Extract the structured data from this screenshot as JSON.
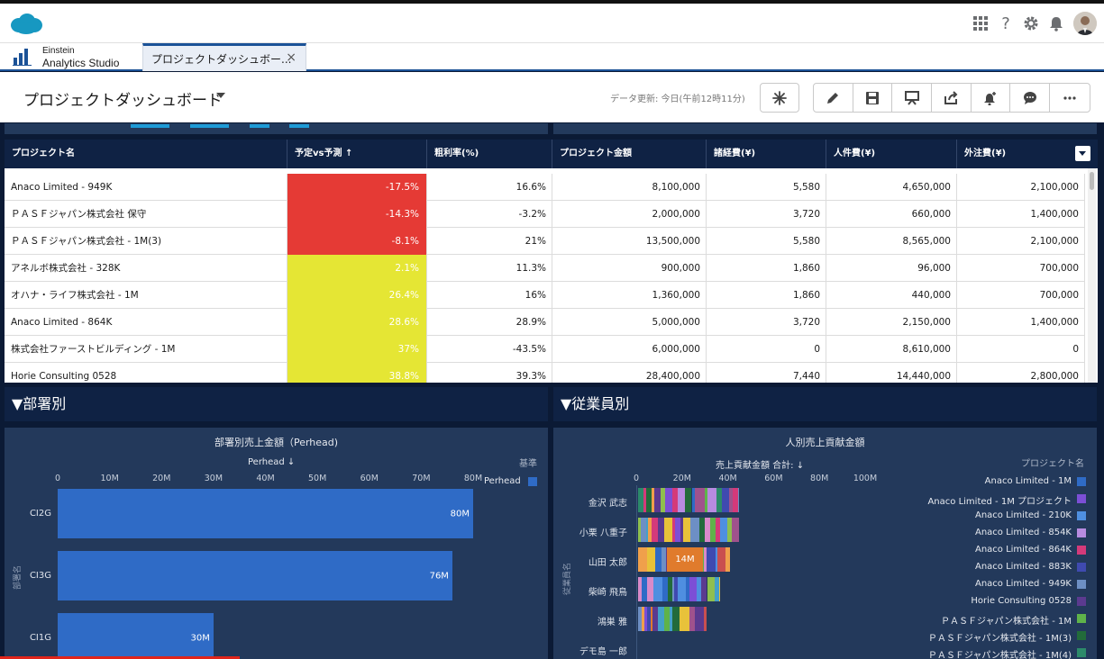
{
  "tab": {
    "app_name_line1": "Einstein",
    "app_name_line2": "Analytics Studio",
    "label": "プロジェクトダッシュボー...",
    "close": "×"
  },
  "header": {
    "title": "プロジェクトダッシュボード",
    "data_update": "データ更新: 今日(午前12時11分)"
  },
  "colors": {
    "red": "#e53a35",
    "yellow": "#e5e634",
    "navy": "#0f2244",
    "panel": "#23395b",
    "bar": "#2f6bc6"
  },
  "icons": [
    "grid-icon",
    "help-icon",
    "gear-icon",
    "bell-icon",
    "asterisk-icon",
    "pencil-icon",
    "save-icon",
    "present-icon",
    "share-icon",
    "notify-icon",
    "comment-icon",
    "more-icon"
  ],
  "table": {
    "columns": [
      "プロジェクト名",
      "予定vs予測 ↑",
      "粗利率(%)",
      "プロジェクト金額",
      "諸経費(¥)",
      "人件費(¥)",
      "外注費(¥)"
    ],
    "rows": [
      {
        "name": "Anaco Limited - 949K",
        "variance": "-17.5%",
        "status": "red",
        "margin": "16.6%",
        "amount": "8,100,000",
        "expense": "5,580",
        "labor": "4,650,000",
        "outsourcing": "2,100,000"
      },
      {
        "name": "ＰＡＳＦジャパン株式会社 保守",
        "variance": "-14.3%",
        "status": "red",
        "margin": "-3.2%",
        "amount": "2,000,000",
        "expense": "3,720",
        "labor": "660,000",
        "outsourcing": "1,400,000"
      },
      {
        "name": "ＰＡＳＦジャパン株式会社 - 1M(3)",
        "variance": "-8.1%",
        "status": "red",
        "margin": "21%",
        "amount": "13,500,000",
        "expense": "5,580",
        "labor": "8,565,000",
        "outsourcing": "2,100,000"
      },
      {
        "name": "アネルボ株式会社 - 328K",
        "variance": "2.1%",
        "status": "yellow",
        "margin": "11.3%",
        "amount": "900,000",
        "expense": "1,860",
        "labor": "96,000",
        "outsourcing": "700,000"
      },
      {
        "name": "オハナ・ライフ株式会社 - 1M",
        "variance": "26.4%",
        "status": "yellow",
        "margin": "16%",
        "amount": "1,360,000",
        "expense": "1,860",
        "labor": "440,000",
        "outsourcing": "700,000"
      },
      {
        "name": "Anaco Limited - 864K",
        "variance": "28.6%",
        "status": "yellow",
        "margin": "28.9%",
        "amount": "5,000,000",
        "expense": "3,720",
        "labor": "2,150,000",
        "outsourcing": "1,400,000"
      },
      {
        "name": "株式会社ファーストビルディング - 1M",
        "variance": "37%",
        "status": "yellow",
        "margin": "-43.5%",
        "amount": "6,000,000",
        "expense": "0",
        "labor": "8,610,000",
        "outsourcing": "0"
      },
      {
        "name": "Horie Consulting 0528",
        "variance": "38.8%",
        "status": "yellow",
        "margin": "39.3%",
        "amount": "28,400,000",
        "expense": "7,440",
        "labor": "14,440,000",
        "outsourcing": "2,800,000"
      }
    ]
  },
  "sections": {
    "dept": "▼部署別",
    "employee": "▼従業員別"
  },
  "chart_data": [
    {
      "type": "bar",
      "title": "部署別売上金額（Perhead)",
      "xlabel": "Perhead ↓",
      "ylabel": "部署名",
      "legend_title": "基準",
      "categories": [
        "CI2G",
        "CI3G",
        "CI1G"
      ],
      "series": [
        {
          "name": "Perhead",
          "values": [
            80,
            76,
            30
          ]
        }
      ],
      "value_labels": [
        "80M",
        "76M",
        "30M"
      ],
      "xlim": [
        0,
        80
      ],
      "ticks": [
        "0",
        "10M",
        "20M",
        "30M",
        "40M",
        "50M",
        "60M",
        "70M",
        "80M"
      ]
    },
    {
      "type": "bar",
      "title": "人別売上貢献金額",
      "xlabel": "売上貢献金額 合計: ↓",
      "ylabel": "従業員名",
      "legend_title": "プロジェクト名",
      "categories": [
        "金沢 武志",
        "小栗 八重子",
        "山田 太郎",
        "柴崎 飛鳥",
        "鴻巣 雅",
        "デモ島 一郎"
      ],
      "values": [
        44,
        44,
        40,
        36,
        30,
        0
      ],
      "highlight_label": "14M",
      "xlim": [
        0,
        100
      ],
      "ticks": [
        "0",
        "20M",
        "40M",
        "60M",
        "80M",
        "100M"
      ],
      "legend": [
        {
          "name": "Anaco Limited - 1M",
          "color": "#2f6bc6"
        },
        {
          "name": "Anaco Limited - 1M プロジェクト",
          "color": "#7c4fd6"
        },
        {
          "name": "Anaco Limited - 210K",
          "color": "#4f8fe0"
        },
        {
          "name": "Anaco Limited - 854K",
          "color": "#b78be0"
        },
        {
          "name": "Anaco Limited - 864K",
          "color": "#d43a7a"
        },
        {
          "name": "Anaco Limited - 883K",
          "color": "#3f4ab0"
        },
        {
          "name": "Anaco Limited - 949K",
          "color": "#6d8fc4"
        },
        {
          "name": "Horie Consulting 0528",
          "color": "#5b3a8f"
        },
        {
          "name": "ＰＡＳＦジャパン株式会社 - 1M",
          "color": "#5fb34a"
        },
        {
          "name": "ＰＡＳＦジャパン株式会社 - 1M(3)",
          "color": "#226b3a"
        },
        {
          "name": "ＰＡＳＦジャパン株式会社 - 1M(4)",
          "color": "#2c8a6a"
        }
      ]
    }
  ]
}
